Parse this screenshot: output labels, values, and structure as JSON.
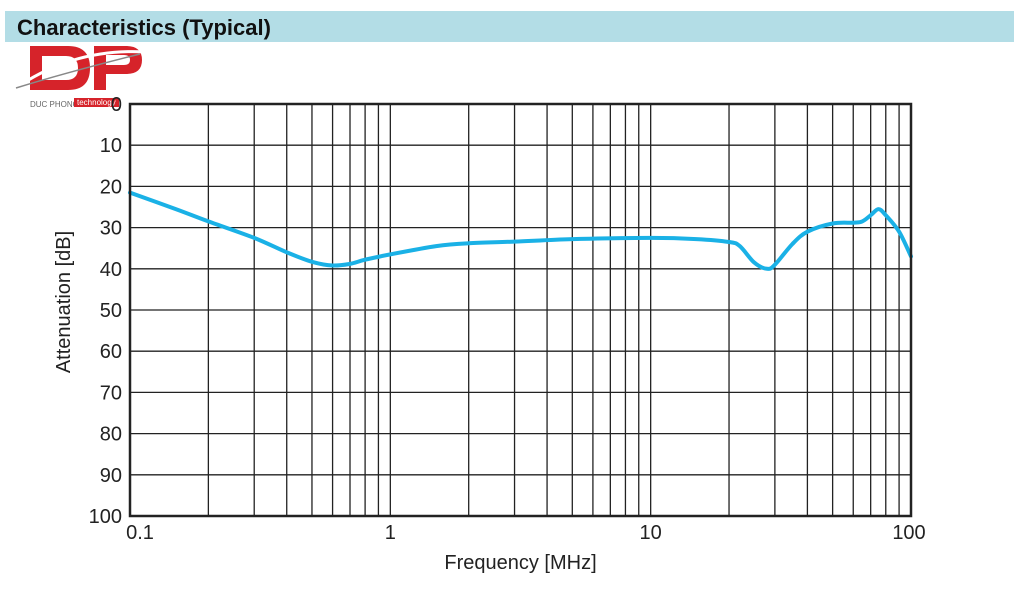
{
  "header": {
    "title": "Characteristics (Typical)"
  },
  "logo": {
    "mark": "DP",
    "company": "DUC PHONG",
    "badge": "technology"
  },
  "colors": {
    "header_bg": "#b3dde6",
    "series": "#1ab1e6",
    "grid": "#222222",
    "logo_red": "#d6232a"
  },
  "chart_data": {
    "type": "line",
    "title": "",
    "xlabel": "Frequency [MHz]",
    "ylabel": "Attenuation [dB]",
    "x_scale": "log",
    "xlim": [
      0.1,
      100
    ],
    "ylim": [
      0,
      100
    ],
    "y_inverted": true,
    "grid": true,
    "x_ticks": [
      {
        "value": 0.1,
        "label": "0.1"
      },
      {
        "value": 1,
        "label": "1"
      },
      {
        "value": 10,
        "label": "10"
      },
      {
        "value": 100,
        "label": "100"
      }
    ],
    "y_ticks": [
      {
        "value": 0,
        "label": "0"
      },
      {
        "value": 10,
        "label": "10"
      },
      {
        "value": 20,
        "label": "20"
      },
      {
        "value": 30,
        "label": "30"
      },
      {
        "value": 40,
        "label": "40"
      },
      {
        "value": 50,
        "label": "50"
      },
      {
        "value": 60,
        "label": "60"
      },
      {
        "value": 70,
        "label": "70"
      },
      {
        "value": 80,
        "label": "80"
      },
      {
        "value": 90,
        "label": "90"
      },
      {
        "value": 100,
        "label": "100"
      }
    ],
    "series": [
      {
        "points": [
          [
            0.1,
            21.5
          ],
          [
            0.15,
            25.5
          ],
          [
            0.2,
            28.5
          ],
          [
            0.3,
            32.5
          ],
          [
            0.4,
            36
          ],
          [
            0.5,
            38.3
          ],
          [
            0.6,
            39.2
          ],
          [
            0.7,
            38.8
          ],
          [
            0.8,
            37.8
          ],
          [
            1,
            36.5
          ],
          [
            1.5,
            34.5
          ],
          [
            2,
            33.8
          ],
          [
            3,
            33.4
          ],
          [
            5,
            32.8
          ],
          [
            10,
            32.5
          ],
          [
            15,
            32.8
          ],
          [
            20,
            33.5
          ],
          [
            22,
            34.5
          ],
          [
            25,
            38.5
          ],
          [
            28,
            40
          ],
          [
            30,
            39
          ],
          [
            35,
            34
          ],
          [
            40,
            31
          ],
          [
            50,
            29
          ],
          [
            60,
            28.8
          ],
          [
            65,
            28.5
          ],
          [
            70,
            27
          ],
          [
            75,
            25.5
          ],
          [
            80,
            27
          ],
          [
            90,
            31
          ],
          [
            100,
            37
          ]
        ]
      }
    ]
  }
}
